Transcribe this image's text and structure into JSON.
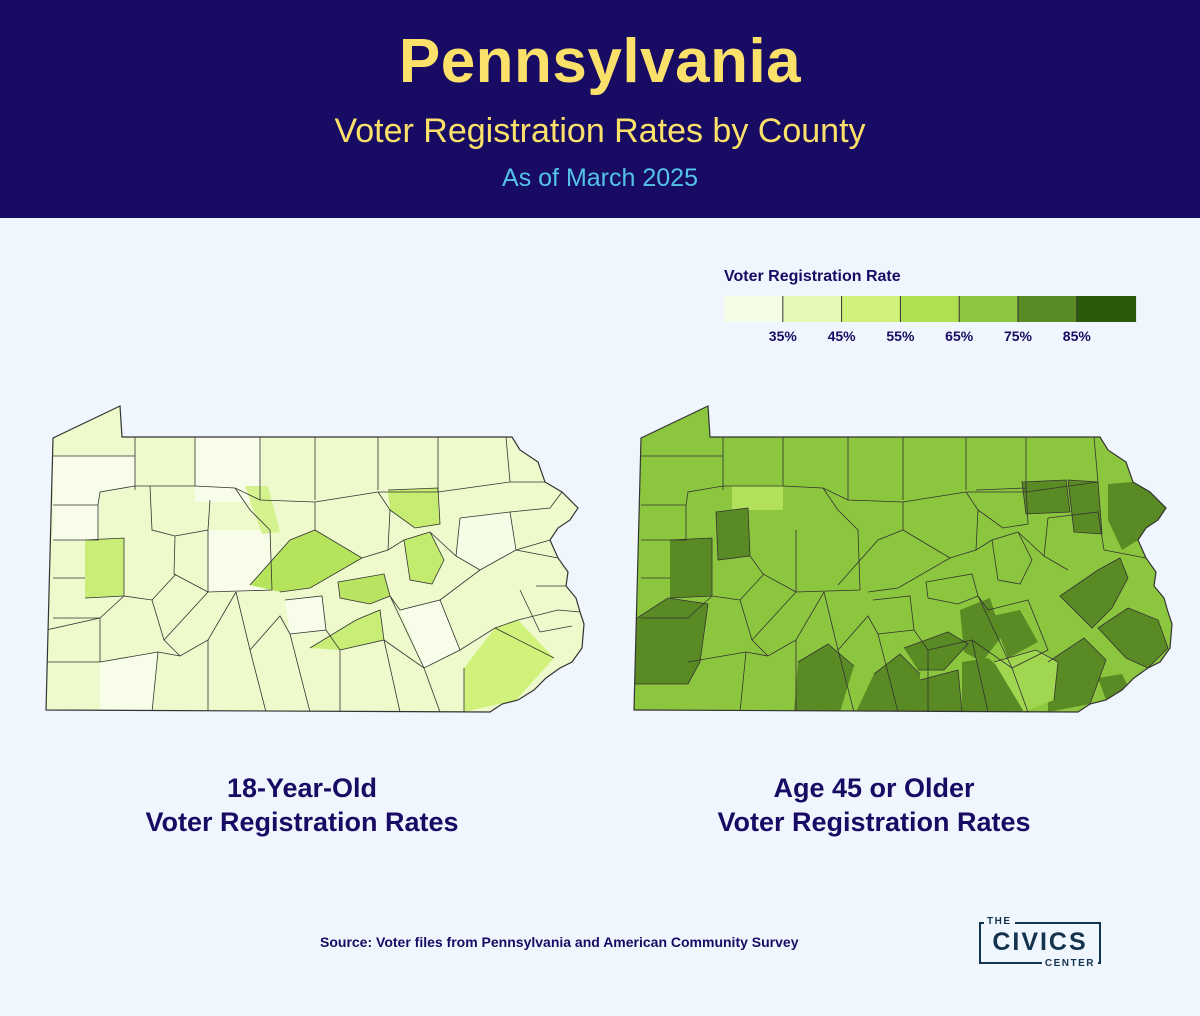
{
  "header": {
    "title": "Pennsylvania",
    "subtitle": "Voter Registration Rates by County",
    "date": "As of March 2025",
    "bg_color": "#170b63",
    "title_color": "#fbe069",
    "date_color": "#54c3ea"
  },
  "legend": {
    "title": "Voter Registration Rate",
    "ticks": [
      "35%",
      "45%",
      "55%",
      "65%",
      "75%",
      "85%"
    ],
    "colors": [
      "#f5fde6",
      "#e6f8b5",
      "#d0f27a",
      "#aee052",
      "#8cc63e",
      "#5a8a23",
      "#2d5a0a"
    ]
  },
  "maps": {
    "left_caption_line1": "18-Year-Old",
    "left_caption_line2": "Voter Registration Rates",
    "right_caption_line1": "Age 45 or Older",
    "right_caption_line2": "Voter Registration Rates",
    "left_base_color": "#eef9cc",
    "right_base_color": "#8cc63e"
  },
  "source": "Source: Voter files from Pennsylvania and American Community Survey",
  "logo": {
    "the": "THE",
    "name": "CIVICS",
    "center": "CENTER"
  }
}
